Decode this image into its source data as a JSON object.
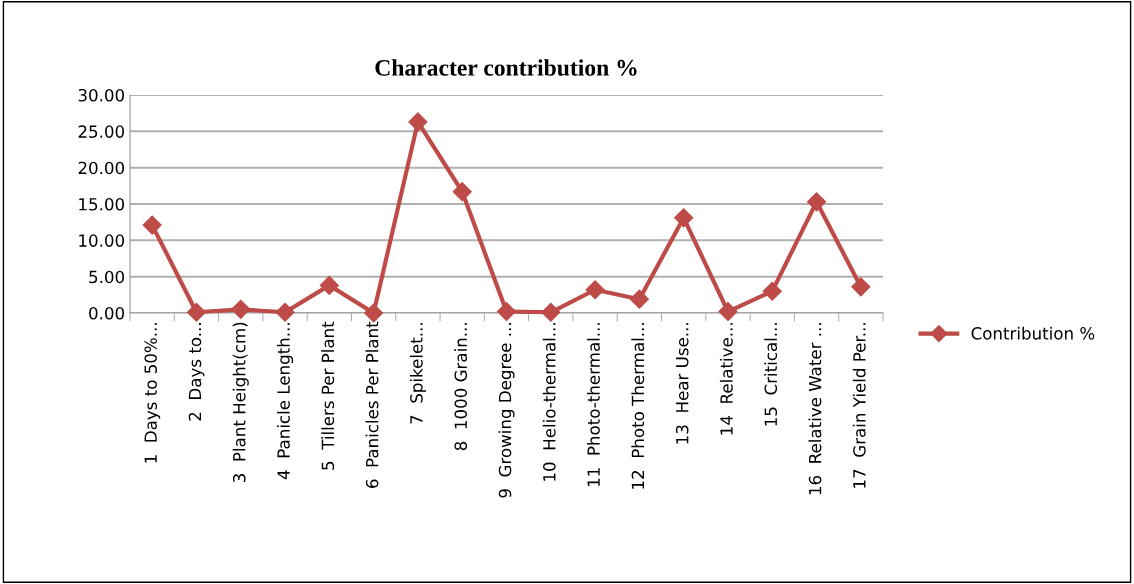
{
  "chart_data": {
    "type": "line",
    "title": "Character contribution %",
    "categories": [
      "1  Days to 50%...",
      "2  Days to...",
      "3  Plant Height(cm)",
      "4  Panicle Length...",
      "5  Tillers Per Plant",
      "6  Panicles Per Plant",
      "7  Spikelet...",
      "8  1000 Grain...",
      "9  Growing Degree ...",
      "10  Helio-thermal...",
      "11  Photo-thermal...",
      "12  Photo Thermal...",
      "13  Hear Use...",
      "14  Relative...",
      "15  Critical...",
      "16  Relative Water ...",
      "17  Grain Yield Per..."
    ],
    "series": [
      {
        "name": "Contribution %",
        "color": "#be4b48",
        "values": [
          12.1,
          0.1,
          0.5,
          0.1,
          3.8,
          0.0,
          26.3,
          16.7,
          0.2,
          0.1,
          3.2,
          1.9,
          13.1,
          0.2,
          3.0,
          15.3,
          3.6
        ]
      }
    ],
    "ylim": [
      0,
      30
    ],
    "yticks": [
      {
        "value": 0,
        "label": "0.00"
      },
      {
        "value": 5,
        "label": "5.00"
      },
      {
        "value": 10,
        "label": "10.00"
      },
      {
        "value": 15,
        "label": "15.00"
      },
      {
        "value": 20,
        "label": "20.00"
      },
      {
        "value": 25,
        "label": "25.00"
      },
      {
        "value": 30,
        "label": "30.00"
      }
    ],
    "grid": "y",
    "legend": "right",
    "marker": "diamond",
    "line_style": "solid"
  }
}
